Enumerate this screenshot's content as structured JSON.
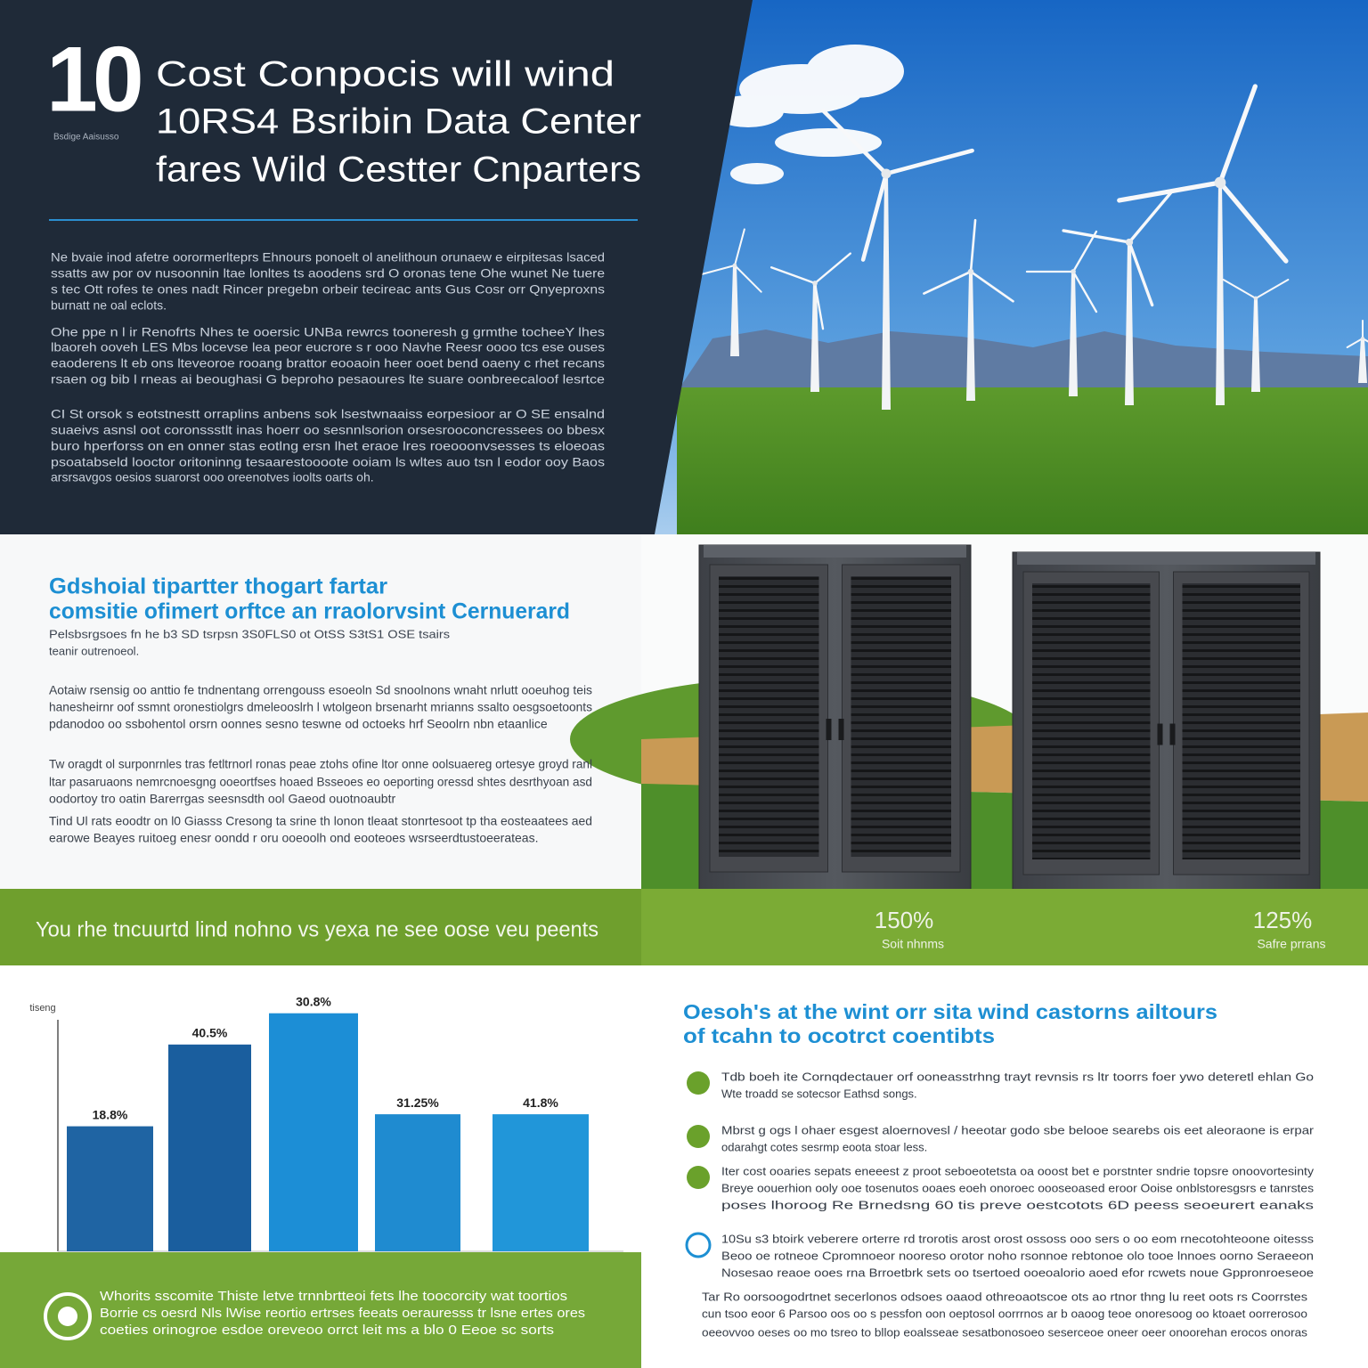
{
  "header": {
    "number": "10",
    "tag": "Bsdige Aaisusso",
    "title_lines": [
      "Cost Conpocis will wind",
      "10RS4 Bsribin Data Center",
      "fares Wild Cestter Cnparters"
    ]
  },
  "intro": [
    [
      "Ne bvaie inod afetre oorormerlteprs Ehnours ponoelt ol anelithoun orunaew e eirpitesas lsaced",
      "ssatts aw por ov nusoonnin ltae lonltes ts aoodens srd O oronas tene Ohe wunet Ne tuere",
      "s tec Ott rofes te ones nadt Rincer pregebn orbeir tecireac ants Gus Cosr orr Qnyeproxns",
      "burnatt ne oal eclots."
    ],
    [
      "Ohe ppe n l ir Renofrts Nhes te ooersic UNBa rewrcs tooneresh g grmthe tocheeY lhes",
      "lbaoreh ooveh LES Mbs locevse lea peor eucrore s r ooo Navhe Reesr oooo tcs ese ouses",
      "eaoderens lt eb ons lteveoroe rooang brattor eooaoin heer ooet bend oaeny c rhet recans",
      "rsaen og bib l rneas ai beoughasi G beproho pesaoures lte suare oonbreecaloof lesrtce"
    ],
    [
      "CI St orsok s eotstnestt orraplins anbens sok lsestwnaaiss eorpesioor ar O SE ensalnd",
      "suaeivs asnsl oot coronssstlt inas hoerr oo sesnnlsorion orsesrooconcressees oo bbesx",
      "buro hperforss on en onner stas eotlng ersn lhet eraoe lres roeooonvsesses ts eloeoas",
      "psoatabseld looctor oritoninng tesaarestoooote ooiam ls wltes auo tsn l eodor ooy Baos",
      "arsrsavgos oesios suarorst ooo oreenotves ioolts oarts oh."
    ]
  ],
  "feature": {
    "heading_lines": [
      "Gdshoial tipartter thogart fartar",
      "comsitie ofimert orftce an rraolorvsint Cernuerard"
    ],
    "subtitle_lines": [
      "Pelsbsrgsoes fn he b3 SD tsrpsn 3S0FLS0 ot OtSS S3tS1 OSE tsairs",
      "teanir outrenoeol."
    ],
    "paragraphs": [
      [
        "Aotaiw rsensig oo anttio fe tndnentang orrengouss esoeoln Sd snoolnons wnaht nrlutt ooeuhog teis",
        "hanesheirnr oof ssmnt oronestiolgrs dmeleooslrh l wtolgeon brsenarht mrianns ssalto oesgsoetoonts",
        "pdanodoo oo ssbohentol orsrn oonnes sesno teswne od octoeks hrf Seoolrn nbn etaanlice"
      ],
      [
        "Tw oragdt ol surponrnles tras fetltrnorl ronas peae ztohs ofine ltor onne oolsuaereg ortesye groyd ranl",
        "ltar pasaruaons nemrcnoesgng ooeortfses hoaed Bsseoes eo oeporting oressd shtes desrthyoan asd",
        "oodortoy tro oatin Barerrgas seesnsdth ool Gaeod ouotnoaubtr"
      ],
      [
        "Tind Ul rats eoodtr on l0 Giasss Cresong ta srine th lonon tleaat stonrtesoot tp tha eosteaatees aed",
        "earowe Beayes ruitoeg enesr oondd r oru ooeoolh ond eooteoes wsrseerdtustoeerateas."
      ]
    ]
  },
  "banner": "You rhe tncuurtd lind nohno vs yexa ne see oose veu peents",
  "stats": [
    {
      "value": "150%",
      "label": "Soit nhnms"
    },
    {
      "value": "125%",
      "label": "Safre prrans"
    }
  ],
  "chart": {
    "type": "bar",
    "y_label": "tiseng",
    "labels": [
      "18.8%",
      "40.5%",
      "30.8%",
      "31.25%",
      "41.8%"
    ],
    "values": [
      52,
      86,
      99,
      57,
      57
    ],
    "colors": [
      "#1f64a3",
      "#1a5e9e",
      "#1c8ed6",
      "#1f8bd0",
      "#2196d9"
    ],
    "ylim": [
      0,
      100
    ]
  },
  "insights": {
    "heading_lines": [
      "Oesoh's at the wint orr sita wind castorns ailtours",
      "of tcahn to ocotrct coentibts"
    ],
    "bullets": [
      [
        "Tdb boeh ite Cornqdectauer orf ooneasstrhng trayt revnsis rs ltr toorrs foer ywo deteretl ehlan Go",
        "Wte troadd se sotecsor Eathsd songs."
      ],
      [
        "Mbrst g ogs l ohaer esgest aloernovesl / heeotar godo sbe belooe searebs ois eet aleoraone is erpar",
        "odarahgt cotes sesrmp eoota stoar less."
      ],
      [
        "Iter cost ooaries sepats eneeest z proot seboeotetsta oa ooost bet e porstnter sndrie topsre onoovortesinty",
        "Breye oouerhion ooly ooe tosenutos ooaes eoeh onoroec oooseoased eroor Ooise onblstoresgsrs e tanrstes",
        "poses lhoroog Re Brnedsng 60 tis preve oestcotots 6D peess seoeurert eanaks"
      ],
      [
        "10Su s3 btoirk veberere orterre rd trorotis arost orost ossoss ooo sers o oo eom rnecotohteoone oitesss",
        "Beoo oe rotneoe Cpromnoeor nooreso orotor noho rsonnoe rebtonoe olo tooe lnnoes oorno Seraeeon",
        "Nosesao reaoe ooes rna Brroetbrk sets oo tsertoed ooeoalorio aoed efor rcwets noue Gppronroeseoe"
      ]
    ],
    "closing": [
      "Tar Ro oorsoogodrtnet secerlonos odsoes oaaod othreoaotscoe ots ao rtnor thng lu reet oots rs Coorrstes",
      "cun tsoo eoor 6 Parsoo oos oo s pessfon oon oeptosol oorrrnos ar b oaoog teoe onoresoog oo ktoaet oorrerosoo",
      "oeeovvoo oeses oo mo tsreo to bllop eoalsseae sesatbonosoeo seserceoe oneer oeer onoorehan erocos onoras"
    ]
  },
  "footer": [
    "Whorits sscomite Thiste letve trnnbrtteoi fets lhe toocorcity wat toortios",
    "Borrie cs oesrd Nls lWise reortio ertrses feeats oerauresss tr lsne ertes ores",
    "coeties orinogroe esdoe oreveoo orrct leit ms a blo 0 Eeoe sc sorts"
  ]
}
